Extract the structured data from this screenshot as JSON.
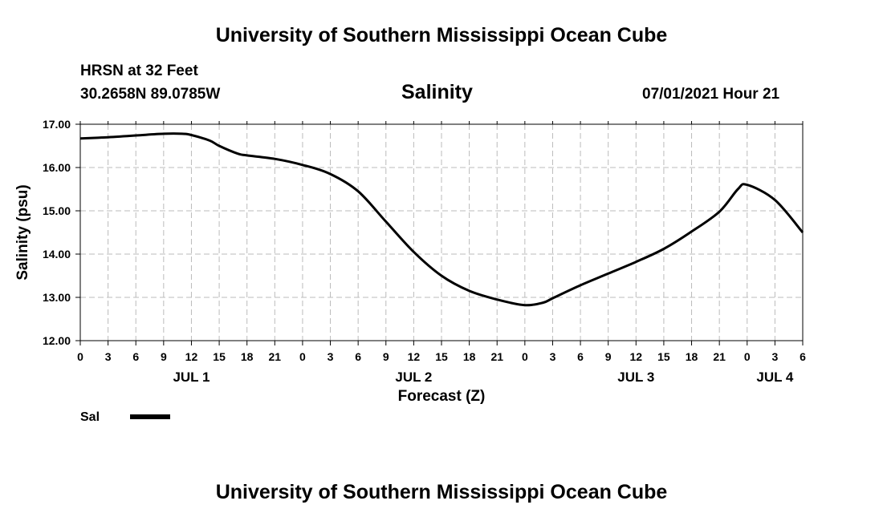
{
  "header": {
    "title": "University of Southern Mississippi Ocean Cube",
    "station": "HRSN at 32 Feet",
    "coords": "30.2658N  89.0785W",
    "timestamp": "07/01/2021 Hour 21"
  },
  "footer": {
    "title": "University of Southern Mississippi Ocean Cube"
  },
  "colors": {
    "series": "#000000",
    "grid": "#bbbbbb"
  },
  "chart_data": {
    "type": "line",
    "title": "Salinity",
    "xlabel": "Forecast (Z)",
    "ylabel": "Salinity (psu)",
    "x_unit": "forecast hours from JUL 1 00Z",
    "xlim": [
      0,
      78
    ],
    "ylim": [
      12.0,
      17.0
    ],
    "y_ticks": [
      "12.00",
      "13.00",
      "14.00",
      "15.00",
      "16.00",
      "17.00"
    ],
    "x_tick_labels": [
      "0",
      "3",
      "6",
      "9",
      "12",
      "15",
      "18",
      "21",
      "0",
      "3",
      "6",
      "9",
      "12",
      "15",
      "18",
      "21",
      "0",
      "3",
      "6",
      "9",
      "12",
      "15",
      "18",
      "21",
      "0",
      "3",
      "6"
    ],
    "date_labels": [
      {
        "label": "JUL 1",
        "hour": 12
      },
      {
        "label": "JUL 2",
        "hour": 36
      },
      {
        "label": "JUL 3",
        "hour": 60
      },
      {
        "label": "JUL 4",
        "hour": 75
      }
    ],
    "grid": true,
    "legend": {
      "position": "bottom-left",
      "label": "Sal"
    },
    "series": [
      {
        "name": "Sal",
        "x": [
          0,
          3,
          6,
          9,
          11,
          12,
          14,
          15,
          17,
          18,
          21,
          24,
          27,
          30,
          33,
          36,
          39,
          42,
          45,
          48,
          50,
          51,
          54,
          57,
          60,
          63,
          66,
          69,
          71,
          72,
          75,
          78
        ],
        "values": [
          16.67,
          16.7,
          16.74,
          16.78,
          16.78,
          16.75,
          16.62,
          16.5,
          16.32,
          16.28,
          16.2,
          16.06,
          15.85,
          15.45,
          14.75,
          14.05,
          13.5,
          13.15,
          12.95,
          12.82,
          12.88,
          12.98,
          13.28,
          13.55,
          13.82,
          14.12,
          14.52,
          14.98,
          15.5,
          15.6,
          15.25,
          14.5
        ]
      }
    ]
  }
}
